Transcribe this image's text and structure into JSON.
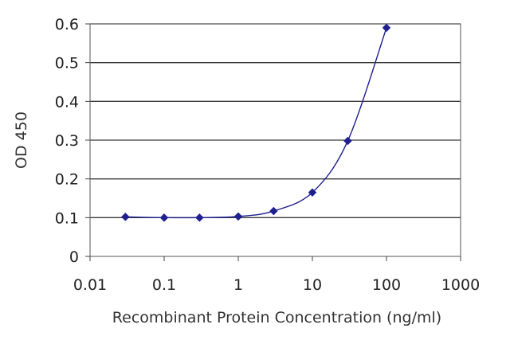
{
  "chart_data": {
    "type": "line",
    "xlabel": "Recombinant Protein Concentration (ng/ml)",
    "ylabel": "OD 450",
    "x_scale": "log",
    "xlim": [
      0.01,
      1000
    ],
    "ylim": [
      0,
      0.6
    ],
    "x_ticks": [
      0.01,
      0.1,
      1,
      10,
      100,
      1000
    ],
    "x_tick_labels": [
      "0.01",
      "0.1",
      "1",
      "10",
      "100",
      "1000"
    ],
    "y_ticks": [
      0,
      0.1,
      0.2,
      0.3,
      0.4,
      0.5,
      0.6
    ],
    "y_tick_labels": [
      "0",
      "0.1",
      "0.2",
      "0.3",
      "0.4",
      "0.5",
      "0.6"
    ],
    "grid": "horizontal",
    "series": [
      {
        "color": "#1f1f8f",
        "marker": "diamond",
        "x": [
          0.03,
          0.1,
          0.3,
          1,
          3,
          10,
          30,
          100
        ],
        "y": [
          0.102,
          0.1,
          0.1,
          0.103,
          0.117,
          0.165,
          0.298,
          0.59
        ]
      }
    ]
  }
}
